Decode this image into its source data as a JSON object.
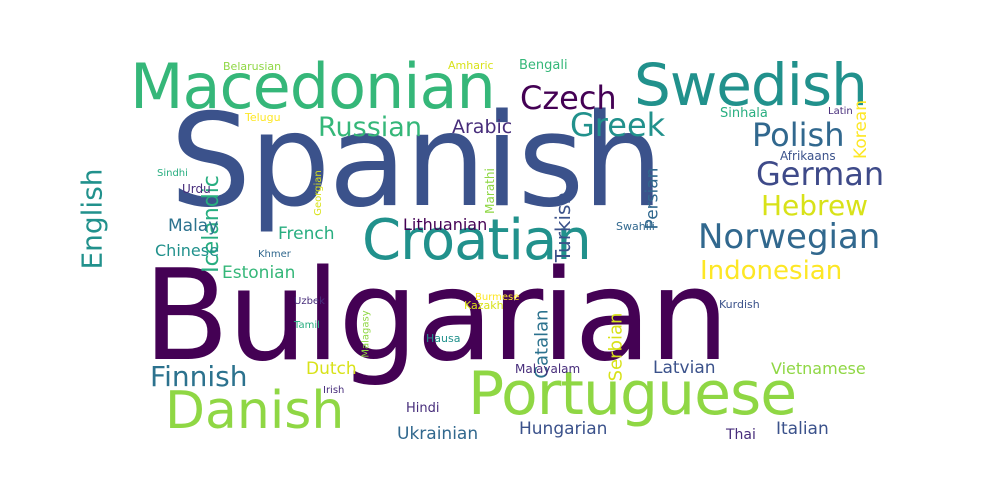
{
  "palette": {
    "dark-purple": "#440154",
    "indigo": "#3b528b",
    "slate-blue": "#31688e",
    "blue-teal": "#2c728e",
    "teal": "#21918c",
    "sea-green": "#28ae80",
    "green": "#35b779",
    "lime": "#8fd744",
    "yellow": "#d8e219",
    "bright-yellow": "#fde725"
  },
  "words": [
    {
      "text": "Bulgarian",
      "color": "#440154"
    },
    {
      "text": "Spanish",
      "color": "#3b528b"
    },
    {
      "text": "Portuguese",
      "color": "#8fd744"
    },
    {
      "text": "Macedonian",
      "color": "#35b779"
    },
    {
      "text": "Swedish",
      "color": "#21918c"
    },
    {
      "text": "Croatian",
      "color": "#21918c"
    },
    {
      "text": "Danish",
      "color": "#8fd744"
    },
    {
      "text": "Norwegian",
      "color": "#31688e"
    },
    {
      "text": "Czech",
      "color": "#440154"
    },
    {
      "text": "Russian",
      "color": "#35b779"
    },
    {
      "text": "Greek",
      "color": "#21918c"
    },
    {
      "text": "Polish",
      "color": "#31688e"
    },
    {
      "text": "German",
      "color": "#3e4a89"
    },
    {
      "text": "Hebrew",
      "color": "#d8e219"
    },
    {
      "text": "Indonesian",
      "color": "#fde725"
    },
    {
      "text": "Finnish",
      "color": "#2c728e"
    },
    {
      "text": "English",
      "color": "#21918c"
    },
    {
      "text": "Icelandic",
      "color": "#28ae80"
    },
    {
      "text": "Arabic",
      "color": "#472d7b"
    },
    {
      "text": "Turkish",
      "color": "#3b528b"
    },
    {
      "text": "Persian",
      "color": "#31688e"
    },
    {
      "text": "Korean",
      "color": "#fde725"
    },
    {
      "text": "Serbian",
      "color": "#d8e219"
    },
    {
      "text": "Catalan",
      "color": "#2c728e"
    },
    {
      "text": "Malay",
      "color": "#2c728e"
    },
    {
      "text": "French",
      "color": "#28ae80"
    },
    {
      "text": "Chinese",
      "color": "#21918c"
    },
    {
      "text": "Estonian",
      "color": "#35b779"
    },
    {
      "text": "Lithuanian",
      "color": "#440154"
    },
    {
      "text": "Hungarian",
      "color": "#3b528b"
    },
    {
      "text": "Ukrainian",
      "color": "#31688e"
    },
    {
      "text": "Latvian",
      "color": "#3b528b"
    },
    {
      "text": "Vietnamese",
      "color": "#8fd744"
    },
    {
      "text": "Italian",
      "color": "#3b528b"
    },
    {
      "text": "Dutch",
      "color": "#d8e219"
    },
    {
      "text": "Bengali",
      "color": "#35b779"
    },
    {
      "text": "Marathi",
      "color": "#8fd744"
    },
    {
      "text": "Sinhala",
      "color": "#28ae80"
    },
    {
      "text": "Afrikaans",
      "color": "#3b528b"
    },
    {
      "text": "Malayalam",
      "color": "#472d7b"
    },
    {
      "text": "Thai",
      "color": "#472d7b"
    },
    {
      "text": "Hindi",
      "color": "#472d7b"
    },
    {
      "text": "Urdu",
      "color": "#472d7b"
    },
    {
      "text": "Sindhi",
      "color": "#28ae80"
    },
    {
      "text": "Telugu",
      "color": "#fde725"
    },
    {
      "text": "Belarusian",
      "color": "#8fd744"
    },
    {
      "text": "Amharic",
      "color": "#d8e219"
    },
    {
      "text": "Latin",
      "color": "#472d7b"
    },
    {
      "text": "Georgian",
      "color": "#d8e219"
    },
    {
      "text": "Swahili",
      "color": "#31688e"
    },
    {
      "text": "Khmer",
      "color": "#31688e"
    },
    {
      "text": "Burmese",
      "color": "#fde725"
    },
    {
      "text": "Uzbek",
      "color": "#472d7b"
    },
    {
      "text": "Kazakh",
      "color": "#d8e219"
    },
    {
      "text": "Malagasy",
      "color": "#8fd744"
    },
    {
      "text": "Tamil",
      "color": "#28ae80"
    },
    {
      "text": "Hausa",
      "color": "#21918c"
    },
    {
      "text": "Kurdish",
      "color": "#3b528b"
    },
    {
      "text": "Irish",
      "color": "#472d7b"
    }
  ]
}
